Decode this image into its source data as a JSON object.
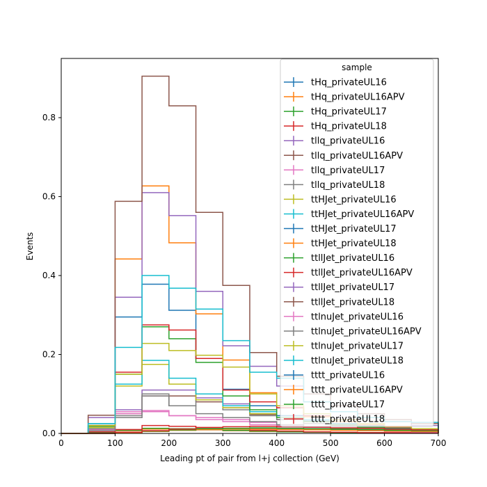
{
  "chart_data": {
    "type": "step-histogram",
    "title": "",
    "xlabel": "Leading pt of pair from l+j collection (GeV)",
    "ylabel": "Events",
    "xlim": [
      0,
      700
    ],
    "ylim": [
      0,
      0.95
    ],
    "x_ticks": [
      "0",
      "100",
      "200",
      "300",
      "400",
      "500",
      "600",
      "700"
    ],
    "y_ticks": [
      "0.0",
      "0.2",
      "0.4",
      "0.6",
      "0.8"
    ],
    "bin_edges": [
      0,
      50,
      100,
      150,
      200,
      250,
      300,
      350,
      400,
      450,
      500,
      550,
      600,
      650,
      700
    ],
    "grid": false,
    "legend": {
      "title": "sample",
      "placement": "top-right"
    },
    "series": [
      {
        "name": "tHq_privateUL16",
        "color": "#1f77b4",
        "values": [
          0.0,
          0.003,
          0.008,
          0.012,
          0.011,
          0.01,
          0.007,
          0.005,
          0.004,
          0.003,
          0.002,
          0.002,
          0.001,
          0.001
        ]
      },
      {
        "name": "tHq_privateUL16APV",
        "color": "#ff7f0e",
        "values": [
          0.0,
          0.003,
          0.007,
          0.011,
          0.01,
          0.009,
          0.007,
          0.005,
          0.004,
          0.003,
          0.002,
          0.002,
          0.001,
          0.001
        ]
      },
      {
        "name": "tHq_privateUL17",
        "color": "#2ca02c",
        "values": [
          0.0,
          0.003,
          0.008,
          0.013,
          0.012,
          0.01,
          0.008,
          0.006,
          0.004,
          0.003,
          0.002,
          0.002,
          0.001,
          0.001
        ]
      },
      {
        "name": "tHq_privateUL18",
        "color": "#d62728",
        "values": [
          0.0,
          0.004,
          0.01,
          0.02,
          0.018,
          0.015,
          0.011,
          0.008,
          0.006,
          0.004,
          0.003,
          0.002,
          0.002,
          0.001
        ]
      },
      {
        "name": "tllq_privateUL16",
        "color": "#9467bd",
        "values": [
          0.0,
          0.01,
          0.06,
          0.11,
          0.11,
          0.09,
          0.075,
          0.055,
          0.04,
          0.03,
          0.02,
          0.015,
          0.01,
          0.008
        ]
      },
      {
        "name": "tllq_privateUL16APV",
        "color": "#8c564b",
        "values": [
          0.0,
          0.008,
          0.05,
          0.095,
          0.095,
          0.08,
          0.065,
          0.048,
          0.035,
          0.025,
          0.018,
          0.013,
          0.009,
          0.007
        ]
      },
      {
        "name": "tllq_privateUL17",
        "color": "#e377c2",
        "values": [
          0.0,
          0.009,
          0.055,
          0.058,
          0.045,
          0.04,
          0.035,
          0.028,
          0.02,
          0.015,
          0.01,
          0.008,
          0.006,
          0.004
        ]
      },
      {
        "name": "tllq_privateUL18",
        "color": "#7f7f7f",
        "values": [
          0.0,
          0.012,
          0.045,
          0.1,
          0.07,
          0.085,
          0.06,
          0.045,
          0.035,
          0.025,
          0.018,
          0.013,
          0.009,
          0.007
        ]
      },
      {
        "name": "ttHJet_privateUL16",
        "color": "#bcbd22",
        "values": [
          0.0,
          0.015,
          0.12,
          0.175,
          0.125,
          0.085,
          0.065,
          0.05,
          0.04,
          0.03,
          0.022,
          0.016,
          0.012,
          0.009
        ]
      },
      {
        "name": "ttHJet_privateUL16APV",
        "color": "#17becf",
        "values": [
          0.0,
          0.02,
          0.125,
          0.185,
          0.14,
          0.1,
          0.07,
          0.055,
          0.045,
          0.035,
          0.025,
          0.018,
          0.013,
          0.01
        ]
      },
      {
        "name": "ttHJet_privateUL17",
        "color": "#1f77b4",
        "values": [
          0.0,
          0.025,
          0.295,
          0.378,
          0.312,
          0.19,
          0.112,
          0.07,
          0.045,
          0.032,
          0.025,
          0.02,
          0.015,
          0.012
        ]
      },
      {
        "name": "ttHJet_privateUL18",
        "color": "#ff7f0e",
        "values": [
          0.0,
          0.04,
          0.442,
          0.627,
          0.483,
          0.303,
          0.186,
          0.103,
          0.065,
          0.042,
          0.03,
          0.022,
          0.016,
          0.012
        ]
      },
      {
        "name": "ttllJet_privateUL16",
        "color": "#2ca02c",
        "values": [
          0.0,
          0.018,
          0.15,
          0.27,
          0.24,
          0.18,
          0.095,
          0.06,
          0.04,
          0.03,
          0.022,
          0.016,
          0.012,
          0.008
        ]
      },
      {
        "name": "ttllJet_privateUL16APV",
        "color": "#d62728",
        "values": [
          0.0,
          0.02,
          0.155,
          0.275,
          0.262,
          0.19,
          0.11,
          0.08,
          0.065,
          0.045,
          0.035,
          0.025,
          0.018,
          0.012
        ]
      },
      {
        "name": "ttllJet_privateUL17",
        "color": "#9467bd",
        "values": [
          0.0,
          0.04,
          0.345,
          0.61,
          0.552,
          0.36,
          0.222,
          0.17,
          0.12,
          0.08,
          0.055,
          0.04,
          0.03,
          0.02
        ]
      },
      {
        "name": "ttllJet_privateUL18",
        "color": "#8c564b",
        "values": [
          0.0,
          0.046,
          0.588,
          0.905,
          0.83,
          0.56,
          0.375,
          0.205,
          0.145,
          0.1,
          0.07,
          0.05,
          0.035,
          0.025
        ]
      },
      {
        "name": "ttlnuJet_privateUL16",
        "color": "#e377c2",
        "values": [
          0.0,
          0.008,
          0.05,
          0.055,
          0.045,
          0.035,
          0.03,
          0.022,
          0.016,
          0.012,
          0.009,
          0.007,
          0.005,
          0.004
        ]
      },
      {
        "name": "ttlnuJet_privateUL16APV",
        "color": "#7f7f7f",
        "values": [
          0.0,
          0.007,
          0.04,
          0.095,
          0.07,
          0.05,
          0.04,
          0.03,
          0.022,
          0.016,
          0.012,
          0.009,
          0.007,
          0.005
        ]
      },
      {
        "name": "ttlnuJet_privateUL17",
        "color": "#bcbd22",
        "values": [
          0.0,
          0.02,
          0.15,
          0.228,
          0.21,
          0.198,
          0.168,
          0.1,
          0.07,
          0.05,
          0.035,
          0.025,
          0.018,
          0.012
        ]
      },
      {
        "name": "ttlnuJet_privateUL18",
        "color": "#17becf",
        "values": [
          0.0,
          0.025,
          0.218,
          0.4,
          0.368,
          0.315,
          0.235,
          0.155,
          0.14,
          0.08,
          0.055,
          0.04,
          0.03,
          0.028
        ]
      },
      {
        "name": "tttt_privateUL16",
        "color": "#1f77b4",
        "values": [
          0.0,
          0.0,
          0.002,
          0.005,
          0.008,
          0.01,
          0.011,
          0.012,
          0.011,
          0.01,
          0.009,
          0.008,
          0.007,
          0.006
        ]
      },
      {
        "name": "tttt_privateUL16APV",
        "color": "#ff7f0e",
        "values": [
          0.0,
          0.0,
          0.002,
          0.005,
          0.008,
          0.01,
          0.011,
          0.011,
          0.01,
          0.009,
          0.008,
          0.007,
          0.006,
          0.005
        ]
      },
      {
        "name": "tttt_privateUL17",
        "color": "#2ca02c",
        "values": [
          0.0,
          0.0,
          0.003,
          0.006,
          0.009,
          0.012,
          0.013,
          0.014,
          0.013,
          0.012,
          0.011,
          0.01,
          0.008,
          0.007
        ]
      },
      {
        "name": "tttt_privateUL18",
        "color": "#d62728",
        "values": [
          0.0,
          0.0,
          0.003,
          0.007,
          0.011,
          0.015,
          0.017,
          0.018,
          0.017,
          0.016,
          0.014,
          0.013,
          0.011,
          0.009
        ]
      }
    ]
  }
}
